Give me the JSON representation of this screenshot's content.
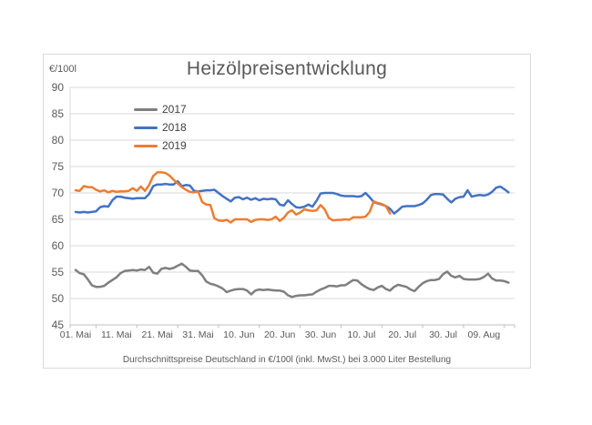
{
  "chart_data": {
    "type": "line",
    "title": "Heizölpreisentwicklung",
    "y_unit_label": "€/100l",
    "footnote": "Durchschnittspreise Deutschland in €/100l (inkl. MwSt.) bei 3.000 Liter Bestellung",
    "ylim": [
      45,
      90
    ],
    "y_ticks": [
      90,
      85,
      80,
      75,
      70,
      65,
      60,
      55,
      50,
      45
    ],
    "grid": true,
    "legend_position": "inside-top-left",
    "x_day_range": [
      0,
      107.5
    ],
    "x_tick_days": [
      0,
      10,
      20,
      30,
      40,
      50,
      60,
      70,
      80,
      90,
      100
    ],
    "x_tick_labels": [
      "01. Mai",
      "11. Mai",
      "21. Mai",
      "31. Mai",
      "10. Jun",
      "20. Jun",
      "30. Jun",
      "10. Jul",
      "20. Jul",
      "30. Jul",
      "09. Aug"
    ],
    "colors": {
      "gridline": "#d9d9d9",
      "baseline": "#bfbfbf",
      "tick": "#bfbfbf",
      "text": "#595959",
      "title": "#595959"
    },
    "series": [
      {
        "name": "2017",
        "color": "#7f7f7f",
        "start_day": 0,
        "values": [
          55.4,
          54.8,
          54.6,
          53.6,
          52.5,
          52.2,
          52.2,
          52.4,
          53.0,
          53.5,
          54.0,
          54.8,
          55.2,
          55.3,
          55.4,
          55.3,
          55.5,
          55.4,
          56.0,
          54.9,
          54.7,
          55.6,
          55.8,
          55.6,
          55.8,
          56.2,
          56.6,
          56.0,
          55.3,
          55.2,
          55.2,
          54.4,
          53.2,
          52.8,
          52.6,
          52.3,
          51.9,
          51.2,
          51.5,
          51.7,
          51.8,
          51.8,
          51.5,
          50.8,
          51.5,
          51.7,
          51.6,
          51.7,
          51.6,
          51.5,
          51.5,
          51.3,
          50.6,
          50.3,
          50.5,
          50.6,
          50.6,
          50.7,
          50.8,
          51.3,
          51.7,
          52.0,
          52.4,
          52.4,
          52.3,
          52.5,
          52.5,
          53.0,
          53.5,
          53.4,
          52.7,
          52.2,
          51.8,
          51.6,
          52.1,
          52.4,
          51.8,
          51.5,
          52.2,
          52.6,
          52.4,
          52.2,
          51.7,
          51.4,
          52.2,
          52.9,
          53.3,
          53.5,
          53.5,
          53.7,
          54.6,
          55.1,
          54.3,
          54.0,
          54.3,
          53.7,
          53.6,
          53.6,
          53.6,
          53.7,
          54.1,
          54.7,
          53.8,
          53.4,
          53.4,
          53.3,
          53.0
        ]
      },
      {
        "name": "2018",
        "color": "#4472c4",
        "start_day": 0,
        "values": [
          66.4,
          66.3,
          66.4,
          66.3,
          66.4,
          66.5,
          67.3,
          67.5,
          67.4,
          68.6,
          69.3,
          69.3,
          69.1,
          69.0,
          68.9,
          69.0,
          69.0,
          69.0,
          69.8,
          71.3,
          71.6,
          71.6,
          71.7,
          71.6,
          71.6,
          72.2,
          71.3,
          71.5,
          71.4,
          70.4,
          70.3,
          70.4,
          70.5,
          70.5,
          70.6,
          70.0,
          69.4,
          68.9,
          68.4,
          69.1,
          69.2,
          68.8,
          69.1,
          68.7,
          69.0,
          68.6,
          68.9,
          68.8,
          68.9,
          68.8,
          67.8,
          67.6,
          68.6,
          67.9,
          67.3,
          67.2,
          67.4,
          67.8,
          67.4,
          68.5,
          69.9,
          70.0,
          70.0,
          70.0,
          69.8,
          69.5,
          69.4,
          69.4,
          69.4,
          69.3,
          69.4,
          70.0,
          69.2,
          68.3,
          68.0,
          67.8,
          67.5,
          67.0,
          66.1,
          66.7,
          67.4,
          67.5,
          67.5,
          67.5,
          67.7,
          68.0,
          68.7,
          69.6,
          69.8,
          69.8,
          69.7,
          68.9,
          68.2,
          68.9,
          69.2,
          69.3,
          70.5,
          69.3,
          69.5,
          69.6,
          69.5,
          69.7,
          70.2,
          71.0,
          71.2,
          70.7,
          70.1
        ]
      },
      {
        "name": "2019",
        "color": "#ed7d31",
        "start_day": 0,
        "values": [
          70.5,
          70.4,
          71.3,
          71.1,
          71.1,
          70.6,
          70.3,
          70.5,
          70.1,
          70.4,
          70.2,
          70.3,
          70.3,
          70.4,
          70.9,
          70.4,
          71.2,
          70.4,
          71.5,
          73.2,
          73.9,
          73.9,
          73.8,
          73.3,
          72.5,
          71.8,
          71.1,
          70.6,
          70.2,
          70.1,
          70.3,
          68.3,
          67.8,
          67.7,
          65.2,
          64.8,
          64.7,
          64.9,
          64.4,
          65.0,
          65.0,
          65.0,
          65.0,
          64.5,
          64.9,
          65.0,
          65.0,
          64.9,
          65.0,
          65.5,
          64.7,
          65.3,
          66.3,
          66.7,
          65.9,
          66.3,
          66.9,
          66.7,
          66.6,
          66.7,
          67.7,
          66.9,
          65.3,
          64.8,
          64.9,
          64.9,
          65.0,
          64.9,
          65.4,
          65.4,
          65.4,
          65.5,
          66.4,
          68.4,
          68.1,
          67.9,
          67.5,
          66.1
        ]
      }
    ]
  }
}
